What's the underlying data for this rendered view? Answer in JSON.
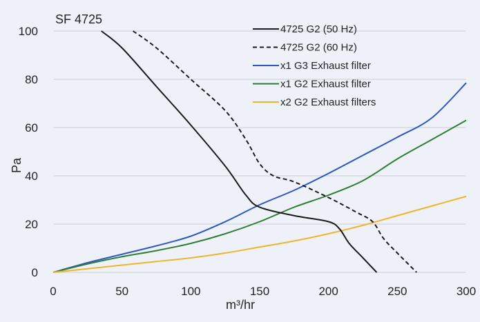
{
  "chart_data": {
    "type": "line",
    "title": "SF 4725",
    "xlabel": "m³/hr",
    "ylabel": "Pa",
    "xlim": [
      0,
      300
    ],
    "ylim": [
      0,
      100
    ],
    "xticks": [
      0,
      50,
      100,
      150,
      200,
      250,
      300
    ],
    "yticks": [
      0,
      20,
      40,
      60,
      80,
      100
    ],
    "grid": "horizontal",
    "legend_position": "top-right",
    "series": [
      {
        "name": "4725 G2 (50 Hz)",
        "color": "#1a1a1a",
        "dash": "solid",
        "points": [
          [
            35,
            100
          ],
          [
            50,
            93
          ],
          [
            75,
            77
          ],
          [
            100,
            61
          ],
          [
            125,
            44
          ],
          [
            140,
            32
          ],
          [
            150,
            27
          ],
          [
            175,
            23.5
          ],
          [
            200,
            21
          ],
          [
            208,
            18
          ],
          [
            215,
            12
          ],
          [
            225,
            6
          ],
          [
            235,
            0
          ]
        ]
      },
      {
        "name": "4725 G2 (60 Hz)",
        "color": "#1a1a1a",
        "dash": "dashed",
        "points": [
          [
            58,
            100
          ],
          [
            75,
            93
          ],
          [
            100,
            80
          ],
          [
            125,
            67
          ],
          [
            140,
            55
          ],
          [
            150,
            45
          ],
          [
            160,
            40
          ],
          [
            175,
            37.5
          ],
          [
            200,
            31
          ],
          [
            220,
            25
          ],
          [
            232,
            21
          ],
          [
            240,
            14
          ],
          [
            250,
            8
          ],
          [
            264,
            0
          ]
        ]
      },
      {
        "name": "x1 G3 Exhaust filter",
        "color": "#2e55c4",
        "dash": "solid",
        "points": [
          [
            0,
            0
          ],
          [
            25,
            4
          ],
          [
            50,
            7.5
          ],
          [
            75,
            11
          ],
          [
            100,
            15
          ],
          [
            125,
            21
          ],
          [
            150,
            28
          ],
          [
            175,
            34
          ],
          [
            200,
            41
          ],
          [
            225,
            48.5
          ],
          [
            250,
            56
          ],
          [
            275,
            64
          ],
          [
            300,
            78.5
          ]
        ]
      },
      {
        "name": "x1 G2 Exhaust filter",
        "color": "#2f7d32",
        "dash": "solid",
        "points": [
          [
            0,
            0
          ],
          [
            25,
            3.5
          ],
          [
            50,
            6.5
          ],
          [
            75,
            9
          ],
          [
            100,
            12
          ],
          [
            125,
            16
          ],
          [
            150,
            21
          ],
          [
            175,
            27
          ],
          [
            200,
            32
          ],
          [
            225,
            38
          ],
          [
            250,
            47
          ],
          [
            275,
            55
          ],
          [
            300,
            63
          ]
        ]
      },
      {
        "name": "x2 G2 Exhaust filters",
        "color": "#f0b429",
        "dash": "solid",
        "points": [
          [
            0,
            0
          ],
          [
            25,
            1.5
          ],
          [
            50,
            3
          ],
          [
            75,
            4.5
          ],
          [
            100,
            6
          ],
          [
            125,
            8
          ],
          [
            150,
            10.5
          ],
          [
            175,
            13
          ],
          [
            200,
            16
          ],
          [
            225,
            19.5
          ],
          [
            250,
            23.5
          ],
          [
            275,
            27.5
          ],
          [
            300,
            31.5
          ]
        ]
      }
    ]
  }
}
